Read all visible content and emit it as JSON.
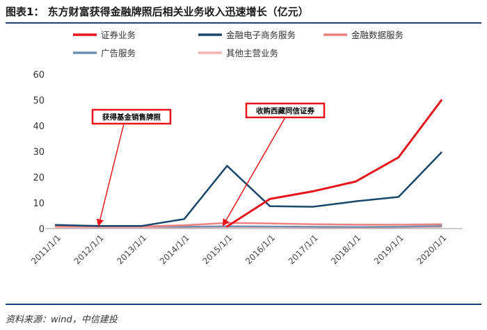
{
  "figure": {
    "title": "图表1：  东方财富获得金融牌照后相关业务收入迅速增长（亿元）",
    "source": "资料来源：wind，中信建投"
  },
  "chart_data": {
    "type": "line",
    "categories": [
      "2011/1/1",
      "2012/1/1",
      "2013/1/1",
      "2014/1/1",
      "2015/1/1",
      "2016/1/1",
      "2017/1/1",
      "2018/1/1",
      "2019/1/1",
      "2020/1/1"
    ],
    "ylim": [
      0,
      60
    ],
    "yticks": [
      0,
      10,
      20,
      30,
      40,
      50,
      60
    ],
    "grid": false,
    "legend_position": "top",
    "series": [
      {
        "name": "证券业务",
        "color": "#e8141c",
        "width": 3,
        "values": [
          null,
          null,
          null,
          null,
          0.8,
          11.5,
          14.5,
          18.3,
          27.7,
          49.9
        ]
      },
      {
        "name": "金融电子商务服务",
        "color": "#17476b",
        "width": 2.5,
        "values": [
          1.4,
          1.0,
          1.0,
          3.7,
          24.4,
          8.7,
          8.5,
          10.6,
          12.3,
          29.6
        ]
      },
      {
        "name": "金融数据服务",
        "color": "#f08080",
        "width": 2.5,
        "values": [
          0.9,
          0.8,
          0.8,
          1.3,
          2.2,
          2.0,
          1.7,
          1.5,
          1.5,
          1.7
        ]
      },
      {
        "name": "广告服务",
        "color": "#6d8fb0",
        "width": 2.5,
        "values": [
          1.3,
          1.0,
          0.9,
          0.7,
          0.9,
          0.8,
          0.7,
          0.6,
          0.7,
          1.0
        ]
      },
      {
        "name": "其他主营业务",
        "color": "#f5b3b3",
        "width": 2.5,
        "values": [
          0.5,
          0.5,
          0.5,
          0.5,
          0.6,
          0.6,
          0.5,
          0.4,
          0.5,
          0.6
        ]
      }
    ],
    "annotations": [
      {
        "text": "获得基金销售牌照",
        "x_index": 1,
        "y": 0
      },
      {
        "text": "收购西藏同信证券",
        "x_index": 4,
        "y": 0
      }
    ]
  }
}
